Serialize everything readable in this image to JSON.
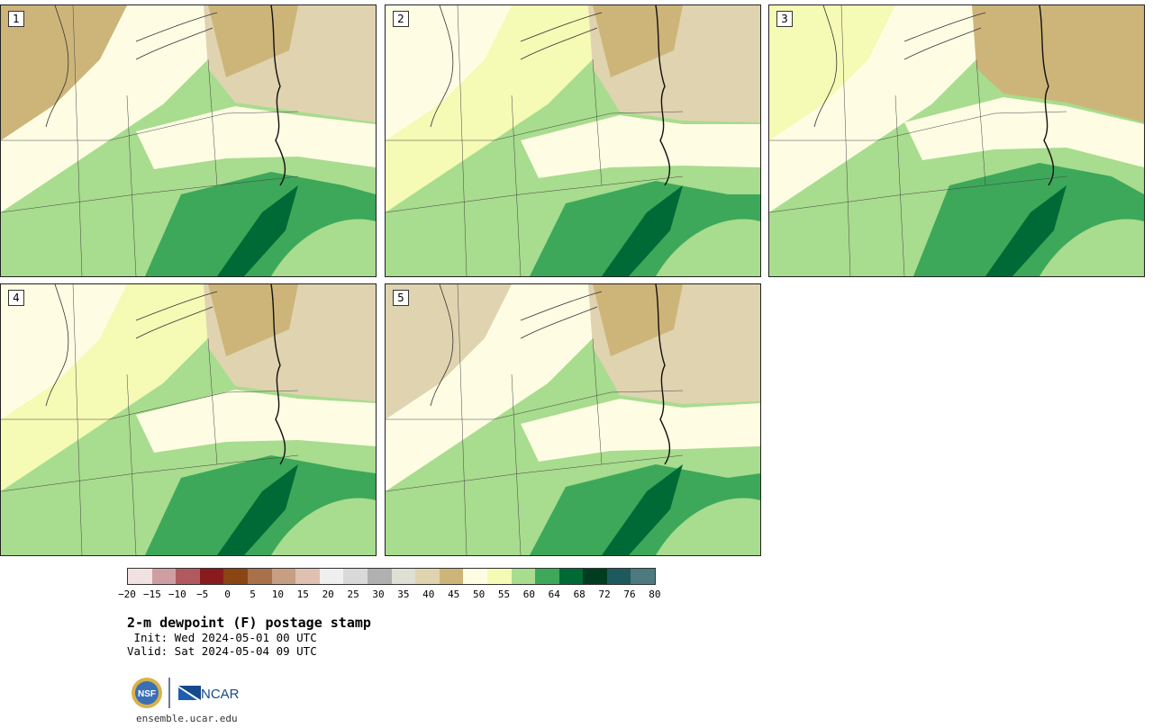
{
  "panels": [
    {
      "number": "1"
    },
    {
      "number": "2"
    },
    {
      "number": "3"
    },
    {
      "number": "4"
    },
    {
      "number": "5"
    }
  ],
  "colorbar": {
    "ticks": [
      "−20",
      "−15",
      "−10",
      "−5",
      "0",
      "5",
      "10",
      "15",
      "20",
      "25",
      "30",
      "35",
      "40",
      "45",
      "50",
      "55",
      "60",
      "64",
      "68",
      "72",
      "76",
      "80"
    ],
    "colors": [
      "#f2e1e1",
      "#cf9ea3",
      "#b05a60",
      "#8b1a1f",
      "#8b4513",
      "#a9714a",
      "#c79e82",
      "#dfc0b1",
      "#efefef",
      "#d9d9d9",
      "#b0b0b0",
      "#dfdfd4",
      "#e0d3b0",
      "#cdb57a",
      "#fefde4",
      "#f5fab5",
      "#a8dc8e",
      "#3da85a",
      "#006a36",
      "#003d20",
      "#1d5a5e",
      "#4c7a7e"
    ]
  },
  "title": "2-m dewpoint (F) postage stamp",
  "init_line": " Init: Wed 2024-05-01 00 UTC",
  "valid_line": "Valid: Sat 2024-05-04 09 UTC",
  "logos": {
    "nsf": "NSF",
    "ncar": "NCAR"
  },
  "site": "ensemble.ucar.edu"
}
